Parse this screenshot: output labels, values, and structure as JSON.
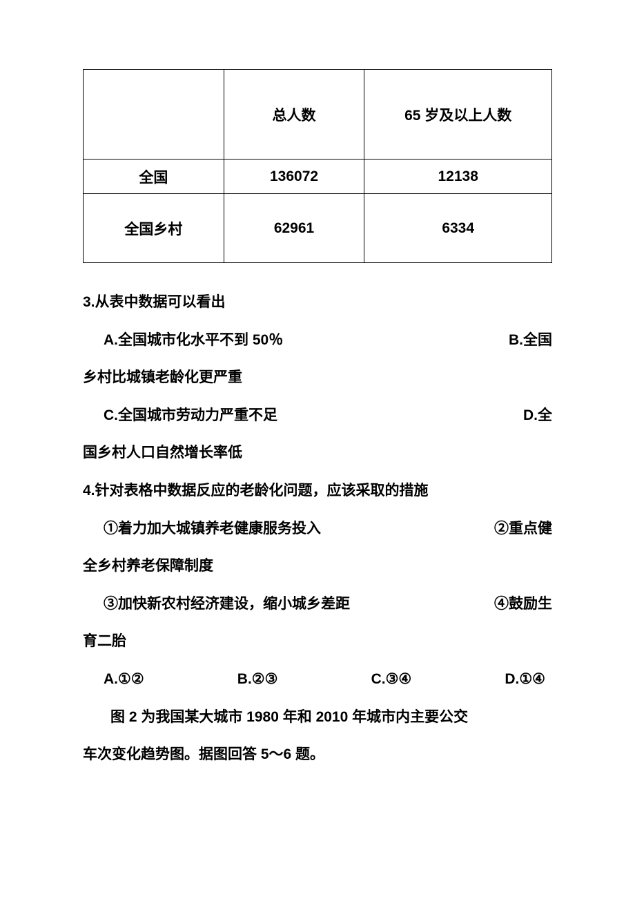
{
  "table": {
    "border_color": "#000000",
    "background_color": "#ffffff",
    "font_weight": "bold",
    "font_size": 21,
    "columns": [
      {
        "width_pct": 30,
        "align": "center"
      },
      {
        "width_pct": 30,
        "align": "center"
      },
      {
        "width_pct": 40,
        "align": "center"
      }
    ],
    "header": {
      "col1": "",
      "col2": "总人数",
      "col3": "65 岁及以上人数"
    },
    "rows": [
      {
        "label": "全国",
        "total": "136072",
        "elderly": "12138"
      },
      {
        "label": "全国乡村",
        "total": "62961",
        "elderly": "6334"
      }
    ]
  },
  "q3": {
    "stem": "3.从表中数据可以看出",
    "optA_left": "A.全国城市化水平不到 50％",
    "optB_right": "B.全国",
    "optB_cont": "乡村比城镇老龄化更严重",
    "optC_left": "C.全国城市劳动力严重不足",
    "optD_right": "D.全",
    "optD_cont": "国乡村人口自然增长率低"
  },
  "q4": {
    "stem": "4.针对表格中数据反应的老龄化问题，应该采取的措施",
    "item1_left": "①着力加大城镇养老健康服务投入",
    "item2_right": "②重点健",
    "item2_cont": "全乡村养老保障制度",
    "item3_left": "③加快新农村经济建设，缩小城乡差距",
    "item4_right": "④鼓励生",
    "item4_cont": "育二胎",
    "optA": "A.①②",
    "optB": "B.②③",
    "optC": "C.③④",
    "optD": "D.①④"
  },
  "figure_intro": {
    "line1": "图 2 为我国某大城市 1980 年和 2010 年城市内主要公交",
    "line2": "车次变化趋势图。据图回答 5～6 题。"
  },
  "styling": {
    "page_bg": "#ffffff",
    "text_color": "#000000",
    "font_family": "SimHei",
    "body_font_size": 21,
    "line_height": 2.6
  }
}
